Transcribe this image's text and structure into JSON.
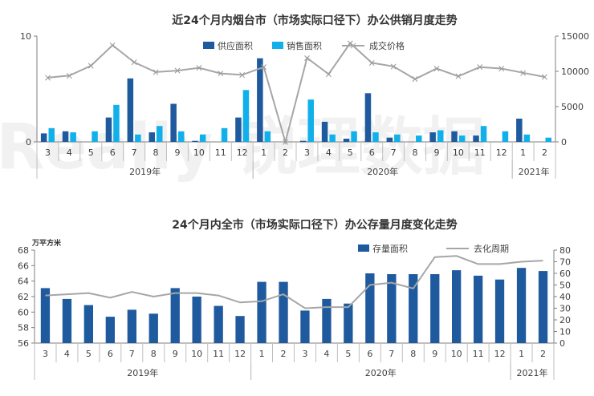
{
  "watermark_text": "Really 锐理数据",
  "colors": {
    "supply": "#1F5A9E",
    "sales": "#12B0EA",
    "price": "#A6A6A6",
    "stock": "#1F5A9E",
    "cycle": "#A6A6A6",
    "axis": "#7F7F7F"
  },
  "chart_data": [
    {
      "type": "bar",
      "title": "近24个月内烟台市（市场实际口径下）办公供销月度走势",
      "categories": [
        "3",
        "4",
        "5",
        "6",
        "7",
        "8",
        "9",
        "10",
        "11",
        "12",
        "1",
        "2",
        "3",
        "4",
        "5",
        "6",
        "7",
        "8",
        "9",
        "10",
        "11",
        "12",
        "1",
        "2"
      ],
      "year_groups": [
        {
          "label": "2019年",
          "start": 0,
          "end": 9
        },
        {
          "label": "2020年",
          "start": 10,
          "end": 21
        },
        {
          "label": "2021年",
          "start": 22,
          "end": 23
        }
      ],
      "y_left": {
        "min": 0,
        "max": 10,
        "ticks": [
          0,
          10
        ]
      },
      "y_right": {
        "min": 0,
        "max": 15000,
        "ticks": [
          0,
          5000,
          10000,
          15000
        ]
      },
      "legend_position": "top-right",
      "series": [
        {
          "name": "供应面积",
          "kind": "bar",
          "axis": "left",
          "values": [
            0.8,
            1.0,
            0.0,
            2.3,
            6.0,
            0.9,
            3.6,
            0.1,
            0.0,
            2.3,
            7.9,
            0.0,
            0.1,
            1.9,
            0.3,
            4.6,
            0.4,
            0.0,
            0.9,
            1.0,
            0.6,
            0.0,
            2.2,
            0.0
          ]
        },
        {
          "name": "销售面积",
          "kind": "bar",
          "axis": "left",
          "values": [
            1.3,
            0.9,
            1.0,
            3.5,
            0.7,
            1.5,
            1.0,
            0.7,
            1.3,
            4.9,
            1.0,
            0.0,
            4.0,
            0.7,
            1.0,
            0.9,
            0.7,
            0.6,
            1.1,
            0.6,
            1.5,
            1.0,
            0.7,
            0.4
          ]
        },
        {
          "name": "成交价格",
          "kind": "line",
          "axis": "right",
          "values": [
            9100,
            9400,
            10800,
            13700,
            11300,
            9900,
            10100,
            10500,
            9700,
            9500,
            10600,
            0,
            11900,
            9600,
            14000,
            11200,
            10700,
            8900,
            10400,
            9300,
            10600,
            10400,
            9800,
            9200
          ]
        }
      ]
    },
    {
      "type": "bar",
      "title": "24个月内全市（市场实际口径下）办公存量月度变化走势",
      "ylabel": "万平方米",
      "categories": [
        "3",
        "4",
        "5",
        "6",
        "7",
        "8",
        "9",
        "10",
        "11",
        "12",
        "1",
        "2",
        "3",
        "4",
        "5",
        "6",
        "7",
        "8",
        "9",
        "10",
        "11",
        "12",
        "1",
        "2"
      ],
      "year_groups": [
        {
          "label": "2019年",
          "start": 0,
          "end": 9
        },
        {
          "label": "2020年",
          "start": 10,
          "end": 21
        },
        {
          "label": "2021年",
          "start": 22,
          "end": 23
        }
      ],
      "y_left": {
        "min": 56,
        "max": 68,
        "ticks": [
          56,
          58,
          60,
          62,
          64,
          66,
          68
        ]
      },
      "y_right": {
        "min": 0,
        "max": 80,
        "ticks": [
          0,
          10,
          20,
          30,
          40,
          50,
          60,
          70,
          80
        ]
      },
      "legend_position": "top-right",
      "series": [
        {
          "name": "存量面积",
          "kind": "bar",
          "axis": "left",
          "values": [
            63.1,
            61.7,
            60.9,
            59.4,
            60.3,
            59.8,
            63.1,
            62.0,
            60.8,
            59.5,
            63.9,
            63.9,
            60.2,
            61.7,
            61.1,
            65.0,
            64.9,
            64.9,
            64.9,
            65.4,
            64.7,
            64.2,
            65.7,
            65.3
          ]
        },
        {
          "name": "去化周期",
          "kind": "line",
          "axis": "right",
          "values": [
            41,
            42,
            43,
            39,
            44,
            40,
            43,
            43,
            41,
            35,
            36,
            42,
            30,
            31,
            31,
            50,
            52,
            47,
            74,
            75,
            68,
            68,
            70,
            71
          ]
        }
      ]
    }
  ]
}
